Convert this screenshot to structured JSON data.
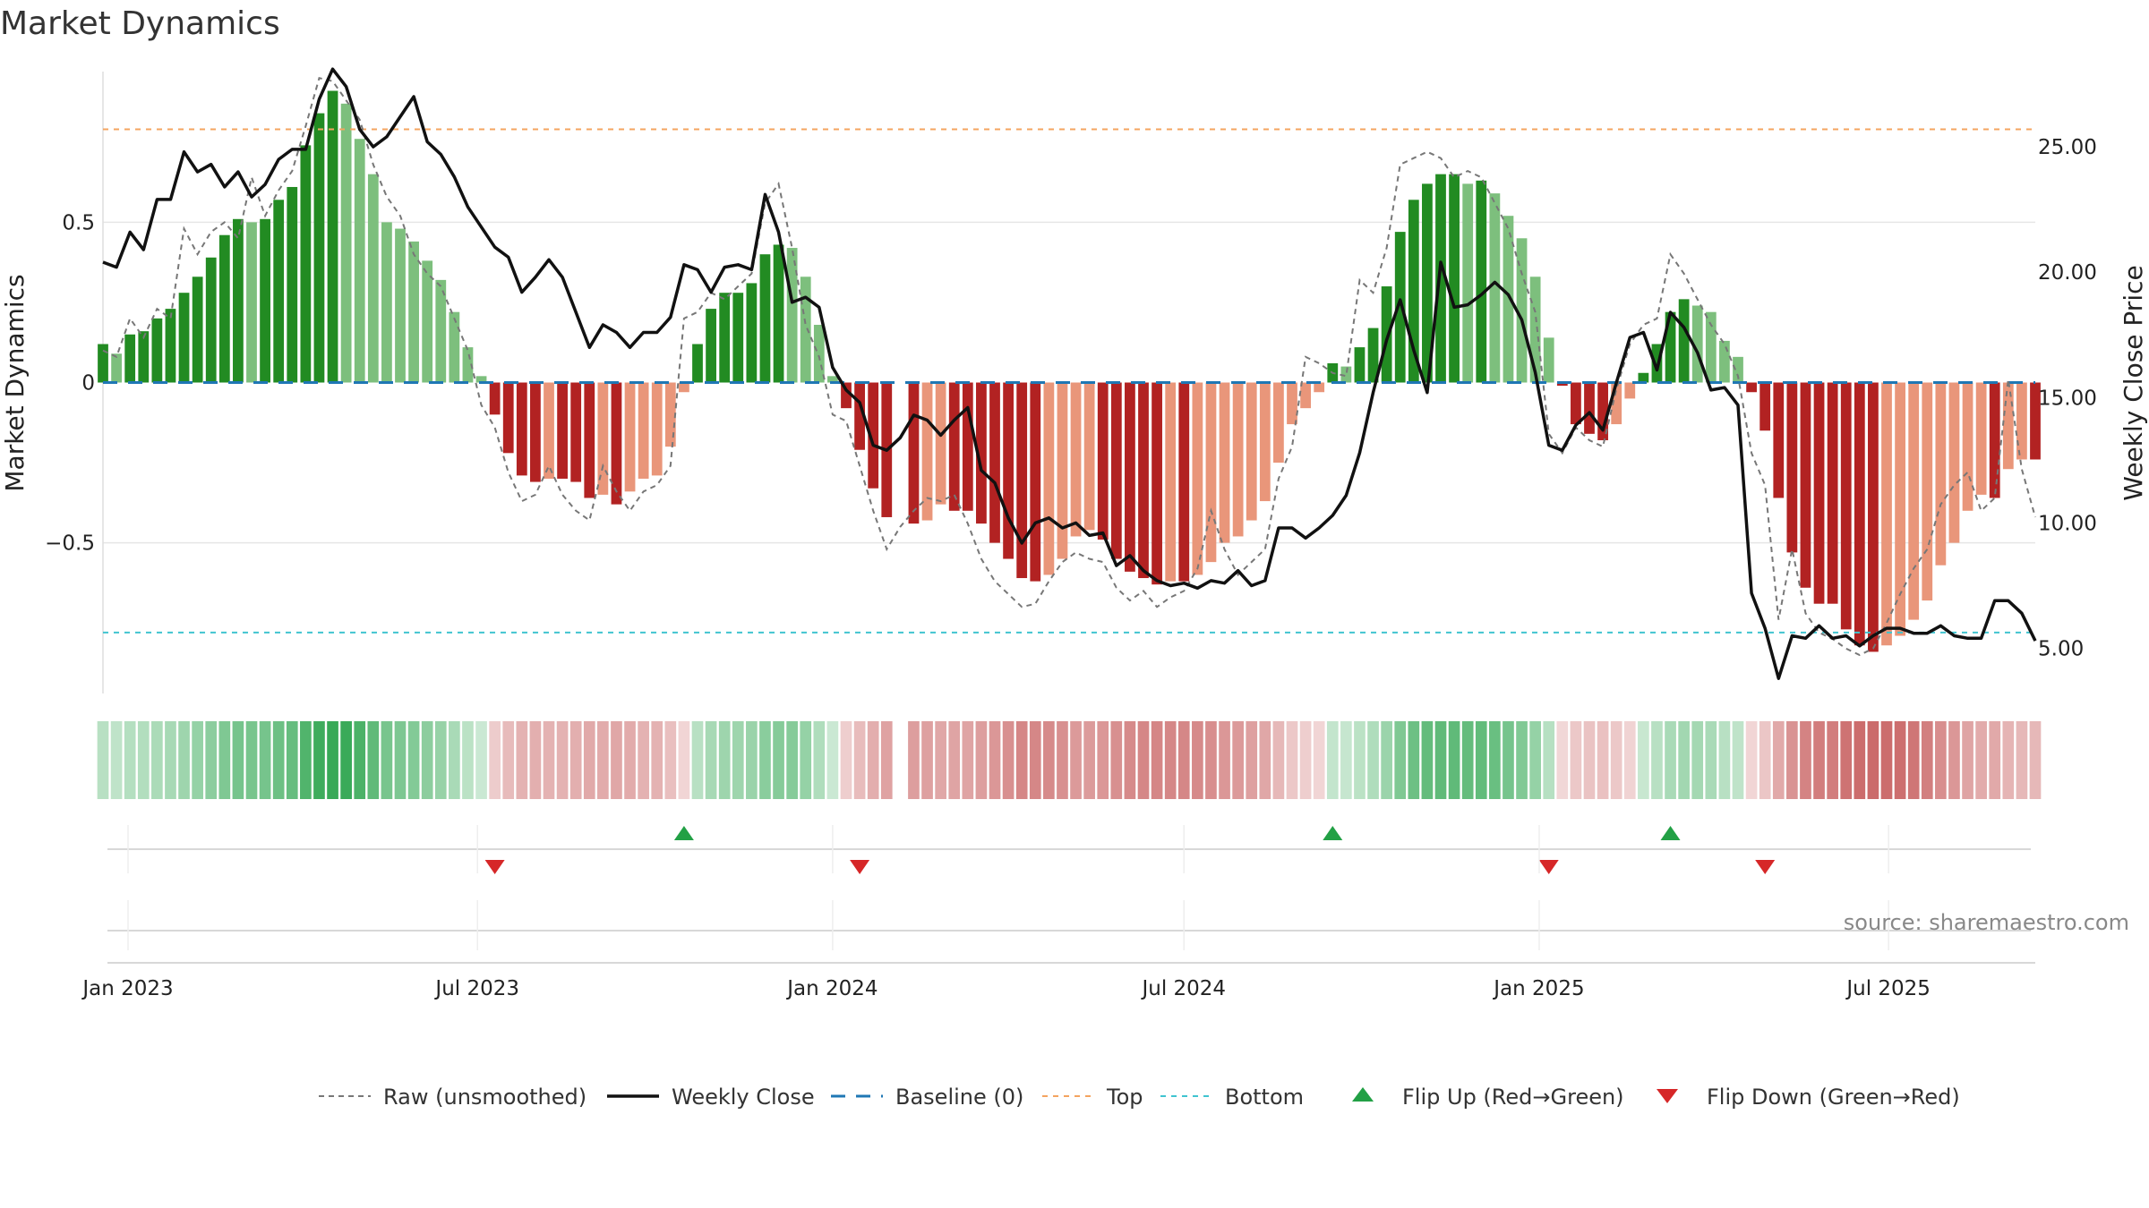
{
  "chart_data": {
    "type": "bar",
    "title": "Market Dynamics",
    "ylabel_left": "Market Dynamics",
    "ylabel_right": "Weekly Close Price",
    "source": "source: sharemaestro.com",
    "x_range": [
      "2022-12-19",
      "2025-09-15"
    ],
    "ylim_left": [
      -0.97,
      0.97
    ],
    "ylim_right": [
      3.2,
      28.0
    ],
    "top_threshold": 0.79,
    "bottom_threshold": -0.78,
    "left_ticks": [
      {
        "value": 0.5,
        "label": "0.5"
      },
      {
        "value": 0,
        "label": "0"
      },
      {
        "value": -0.5,
        "label": "−0.5"
      }
    ],
    "right_ticks": [
      {
        "value": 25,
        "label": "25.00"
      },
      {
        "value": 20,
        "label": "20.00"
      },
      {
        "value": 15,
        "label": "15.00"
      },
      {
        "value": 10,
        "label": "10.00"
      },
      {
        "value": 5,
        "label": "5.00"
      }
    ],
    "x_ticks": [
      {
        "date": "2023-01-01",
        "label": "Jan 2023"
      },
      {
        "date": "2023-07-01",
        "label": "Jul 2023"
      },
      {
        "date": "2024-01-01",
        "label": "Jan 2024"
      },
      {
        "date": "2024-07-01",
        "label": "Jul 2024"
      },
      {
        "date": "2025-01-01",
        "label": "Jan 2025"
      },
      {
        "date": "2025-07-01",
        "label": "Jul 2025"
      }
    ],
    "colors": {
      "pos_strong": "#228B22",
      "pos_weak": "#7DBF7D",
      "neg_strong": "#B22222",
      "neg_weak": "#E9967A",
      "raw": "#777777",
      "close": "#111111",
      "baseline": "#1F77B4",
      "top": "#F4A460",
      "bottom": "#40C4D0",
      "flip_up": "#22A045",
      "flip_down": "#D62728"
    },
    "legend": [
      {
        "label": "Raw (unsmoothed)",
        "kind": "raw"
      },
      {
        "label": "Weekly Close",
        "kind": "close"
      },
      {
        "label": "Baseline (0)",
        "kind": "baseline"
      },
      {
        "label": "Top",
        "kind": "top"
      },
      {
        "label": "Bottom",
        "kind": "bottom"
      },
      {
        "label": "Flip Up (Red→Green)",
        "kind": "flip_up"
      },
      {
        "label": "Flip Down (Green→Red)",
        "kind": "flip_down"
      }
    ],
    "flips_up": [
      "2023-10-16",
      "2024-09-16",
      "2025-03-10"
    ],
    "flips_down": [
      "2023-07-10",
      "2024-01-15",
      "2025-01-06",
      "2025-04-28"
    ],
    "weekly": [
      [
        "2022-12-19",
        0.12,
        0.1,
        20.4
      ],
      [
        "2022-12-26",
        0.09,
        0.08,
        20.2
      ],
      [
        "2023-01-02",
        0.15,
        0.2,
        21.6
      ],
      [
        "2023-01-09",
        0.16,
        0.14,
        20.9
      ],
      [
        "2023-01-16",
        0.2,
        0.23,
        22.9
      ],
      [
        "2023-01-23",
        0.23,
        0.2,
        22.9
      ],
      [
        "2023-01-30",
        0.28,
        0.48,
        24.8
      ],
      [
        "2023-02-06",
        0.33,
        0.4,
        24.0
      ],
      [
        "2023-02-13",
        0.39,
        0.47,
        24.3
      ],
      [
        "2023-02-20",
        0.46,
        0.5,
        23.4
      ],
      [
        "2023-02-27",
        0.51,
        0.45,
        24.0
      ],
      [
        "2023-03-06",
        0.5,
        0.64,
        23.0
      ],
      [
        "2023-03-13",
        0.51,
        0.52,
        23.5
      ],
      [
        "2023-03-20",
        0.57,
        0.6,
        24.5
      ],
      [
        "2023-03-27",
        0.61,
        0.66,
        24.9
      ],
      [
        "2023-04-03",
        0.74,
        0.8,
        24.9
      ],
      [
        "2023-04-10",
        0.84,
        0.95,
        26.9
      ],
      [
        "2023-04-17",
        0.91,
        0.94,
        28.1
      ],
      [
        "2023-04-24",
        0.87,
        0.88,
        27.4
      ],
      [
        "2023-05-01",
        0.76,
        0.82,
        25.7
      ],
      [
        "2023-05-08",
        0.65,
        0.68,
        25.0
      ],
      [
        "2023-05-15",
        0.5,
        0.58,
        25.4
      ],
      [
        "2023-05-22",
        0.48,
        0.52,
        26.2
      ],
      [
        "2023-05-29",
        0.44,
        0.4,
        27.0
      ],
      [
        "2023-06-05",
        0.38,
        0.34,
        25.2
      ],
      [
        "2023-06-12",
        0.32,
        0.3,
        24.7
      ],
      [
        "2023-06-19",
        0.22,
        0.2,
        23.8
      ],
      [
        "2023-06-26",
        0.11,
        0.1,
        22.6
      ],
      [
        "2023-07-03",
        0.02,
        -0.07,
        21.8
      ],
      [
        "2023-07-10",
        -0.1,
        -0.14,
        21.0
      ],
      [
        "2023-07-17",
        -0.22,
        -0.28,
        20.6
      ],
      [
        "2023-07-24",
        -0.29,
        -0.37,
        19.2
      ],
      [
        "2023-07-31",
        -0.31,
        -0.35,
        19.8
      ],
      [
        "2023-08-07",
        -0.3,
        -0.26,
        20.5
      ],
      [
        "2023-08-14",
        -0.3,
        -0.35,
        19.8
      ],
      [
        "2023-08-21",
        -0.31,
        -0.4,
        18.4
      ],
      [
        "2023-08-28",
        -0.36,
        -0.43,
        17.0
      ],
      [
        "2023-09-04",
        -0.35,
        -0.26,
        17.9
      ],
      [
        "2023-09-11",
        -0.38,
        -0.34,
        17.6
      ],
      [
        "2023-09-18",
        -0.34,
        -0.4,
        17.0
      ],
      [
        "2023-09-25",
        -0.3,
        -0.34,
        17.6
      ],
      [
        "2023-10-02",
        -0.29,
        -0.32,
        17.6
      ],
      [
        "2023-10-09",
        -0.2,
        -0.26,
        18.2
      ],
      [
        "2023-10-16",
        -0.03,
        0.2,
        20.3
      ],
      [
        "2023-10-23",
        0.12,
        0.22,
        20.1
      ],
      [
        "2023-10-30",
        0.23,
        0.28,
        19.2
      ],
      [
        "2023-11-06",
        0.28,
        0.26,
        20.2
      ],
      [
        "2023-11-13",
        0.28,
        0.3,
        20.3
      ],
      [
        "2023-11-20",
        0.31,
        0.34,
        20.1
      ],
      [
        "2023-11-27",
        0.4,
        0.56,
        23.1
      ],
      [
        "2023-12-04",
        0.43,
        0.62,
        21.6
      ],
      [
        "2023-12-11",
        0.42,
        0.42,
        18.8
      ],
      [
        "2023-12-18",
        0.33,
        0.18,
        19.0
      ],
      [
        "2023-12-25",
        0.18,
        0.08,
        18.6
      ],
      [
        "2024-01-01",
        0.02,
        -0.1,
        16.2
      ],
      [
        "2024-01-08",
        -0.08,
        -0.12,
        15.3
      ],
      [
        "2024-01-15",
        -0.21,
        -0.26,
        14.8
      ],
      [
        "2024-01-22",
        -0.33,
        -0.4,
        13.1
      ],
      [
        "2024-01-29",
        -0.42,
        -0.52,
        12.9
      ],
      [
        "2024-02-05",
        0.0,
        -0.45,
        13.4
      ],
      [
        "2024-02-12",
        -0.44,
        -0.4,
        14.3
      ],
      [
        "2024-02-19",
        -0.43,
        -0.36,
        14.1
      ],
      [
        "2024-02-26",
        -0.38,
        -0.37,
        13.5
      ],
      [
        "2024-03-04",
        -0.4,
        -0.35,
        14.1
      ],
      [
        "2024-03-11",
        -0.4,
        -0.44,
        14.6
      ],
      [
        "2024-03-18",
        -0.44,
        -0.55,
        12.1
      ],
      [
        "2024-03-25",
        -0.5,
        -0.62,
        11.6
      ],
      [
        "2024-04-01",
        -0.55,
        -0.66,
        10.2
      ],
      [
        "2024-04-08",
        -0.61,
        -0.7,
        9.2
      ],
      [
        "2024-04-15",
        -0.62,
        -0.69,
        10.0
      ],
      [
        "2024-04-22",
        -0.6,
        -0.62,
        10.2
      ],
      [
        "2024-04-29",
        -0.55,
        -0.56,
        9.8
      ],
      [
        "2024-05-06",
        -0.48,
        -0.53,
        10.0
      ],
      [
        "2024-05-13",
        -0.46,
        -0.55,
        9.5
      ],
      [
        "2024-05-20",
        -0.49,
        -0.56,
        9.6
      ],
      [
        "2024-05-27",
        -0.55,
        -0.64,
        8.3
      ],
      [
        "2024-06-03",
        -0.59,
        -0.68,
        8.7
      ],
      [
        "2024-06-10",
        -0.61,
        -0.65,
        8.1
      ],
      [
        "2024-06-17",
        -0.63,
        -0.7,
        7.7
      ],
      [
        "2024-06-24",
        -0.62,
        -0.67,
        7.5
      ],
      [
        "2024-07-01",
        -0.62,
        -0.65,
        7.6
      ],
      [
        "2024-07-08",
        -0.6,
        -0.58,
        7.4
      ],
      [
        "2024-07-15",
        -0.56,
        -0.4,
        7.7
      ],
      [
        "2024-07-22",
        -0.5,
        -0.52,
        7.6
      ],
      [
        "2024-07-29",
        -0.48,
        -0.6,
        8.1
      ],
      [
        "2024-08-05",
        -0.43,
        -0.56,
        7.5
      ],
      [
        "2024-08-12",
        -0.37,
        -0.52,
        7.7
      ],
      [
        "2024-08-19",
        -0.25,
        -0.3,
        9.8
      ],
      [
        "2024-08-26",
        -0.13,
        -0.2,
        9.8
      ],
      [
        "2024-09-02",
        -0.08,
        0.08,
        9.4
      ],
      [
        "2024-09-09",
        -0.03,
        0.06,
        9.8
      ],
      [
        "2024-09-16",
        0.06,
        0.03,
        10.3
      ],
      [
        "2024-09-23",
        0.05,
        0.02,
        11.1
      ],
      [
        "2024-09-30",
        0.11,
        0.32,
        12.8
      ],
      [
        "2024-10-07",
        0.17,
        0.28,
        15.2
      ],
      [
        "2024-10-14",
        0.3,
        0.42,
        17.3
      ],
      [
        "2024-10-21",
        0.47,
        0.68,
        18.9
      ],
      [
        "2024-10-28",
        0.57,
        0.7,
        16.9
      ],
      [
        "2024-11-04",
        0.62,
        0.72,
        15.2
      ],
      [
        "2024-11-11",
        0.65,
        0.7,
        20.4
      ],
      [
        "2024-11-18",
        0.65,
        0.64,
        18.6
      ],
      [
        "2024-11-25",
        0.62,
        0.66,
        18.7
      ],
      [
        "2024-12-02",
        0.63,
        0.64,
        19.1
      ],
      [
        "2024-12-09",
        0.59,
        0.56,
        19.6
      ],
      [
        "2024-12-16",
        0.52,
        0.48,
        19.1
      ],
      [
        "2024-12-23",
        0.45,
        0.34,
        18.1
      ],
      [
        "2024-12-30",
        0.33,
        0.22,
        16.0
      ],
      [
        "2025-01-06",
        0.14,
        -0.16,
        13.1
      ],
      [
        "2025-01-13",
        -0.01,
        -0.22,
        12.9
      ],
      [
        "2025-01-20",
        -0.13,
        -0.14,
        13.9
      ],
      [
        "2025-01-27",
        -0.16,
        -0.18,
        14.4
      ],
      [
        "2025-02-03",
        -0.18,
        -0.2,
        13.7
      ],
      [
        "2025-02-10",
        -0.13,
        -0.02,
        15.6
      ],
      [
        "2025-02-17",
        -0.05,
        0.12,
        17.4
      ],
      [
        "2025-02-24",
        0.03,
        0.18,
        17.6
      ],
      [
        "2025-03-03",
        0.12,
        0.2,
        16.1
      ],
      [
        "2025-03-10",
        0.22,
        0.4,
        18.4
      ],
      [
        "2025-03-17",
        0.26,
        0.34,
        17.8
      ],
      [
        "2025-03-24",
        0.24,
        0.26,
        16.8
      ],
      [
        "2025-03-31",
        0.22,
        0.18,
        15.3
      ],
      [
        "2025-04-07",
        0.13,
        0.12,
        15.4
      ],
      [
        "2025-04-14",
        0.08,
        0.02,
        14.7
      ],
      [
        "2025-04-21",
        -0.03,
        -0.22,
        7.2
      ],
      [
        "2025-04-28",
        -0.15,
        -0.32,
        5.8
      ],
      [
        "2025-05-05",
        -0.36,
        -0.74,
        3.8
      ],
      [
        "2025-05-12",
        -0.53,
        -0.52,
        5.5
      ],
      [
        "2025-05-19",
        -0.64,
        -0.72,
        5.4
      ],
      [
        "2025-05-26",
        -0.69,
        -0.78,
        5.9
      ],
      [
        "2025-06-02",
        -0.69,
        -0.8,
        5.4
      ],
      [
        "2025-06-09",
        -0.77,
        -0.83,
        5.5
      ],
      [
        "2025-06-16",
        -0.82,
        -0.85,
        5.1
      ],
      [
        "2025-06-23",
        -0.84,
        -0.83,
        5.5
      ],
      [
        "2025-06-30",
        -0.82,
        -0.75,
        5.8
      ],
      [
        "2025-07-07",
        -0.79,
        -0.66,
        5.8
      ],
      [
        "2025-07-14",
        -0.74,
        -0.58,
        5.6
      ],
      [
        "2025-07-21",
        -0.68,
        -0.52,
        5.6
      ],
      [
        "2025-07-28",
        -0.57,
        -0.38,
        5.9
      ],
      [
        "2025-08-04",
        -0.5,
        -0.32,
        5.5
      ],
      [
        "2025-08-11",
        -0.4,
        -0.28,
        5.4
      ],
      [
        "2025-08-18",
        -0.35,
        -0.4,
        5.4
      ],
      [
        "2025-08-25",
        -0.36,
        -0.36,
        6.9
      ],
      [
        "2025-09-01",
        -0.27,
        0.01,
        6.9
      ],
      [
        "2025-09-08",
        -0.24,
        -0.27,
        6.4
      ],
      [
        "2025-09-15",
        -0.24,
        -0.42,
        5.3
      ]
    ]
  }
}
